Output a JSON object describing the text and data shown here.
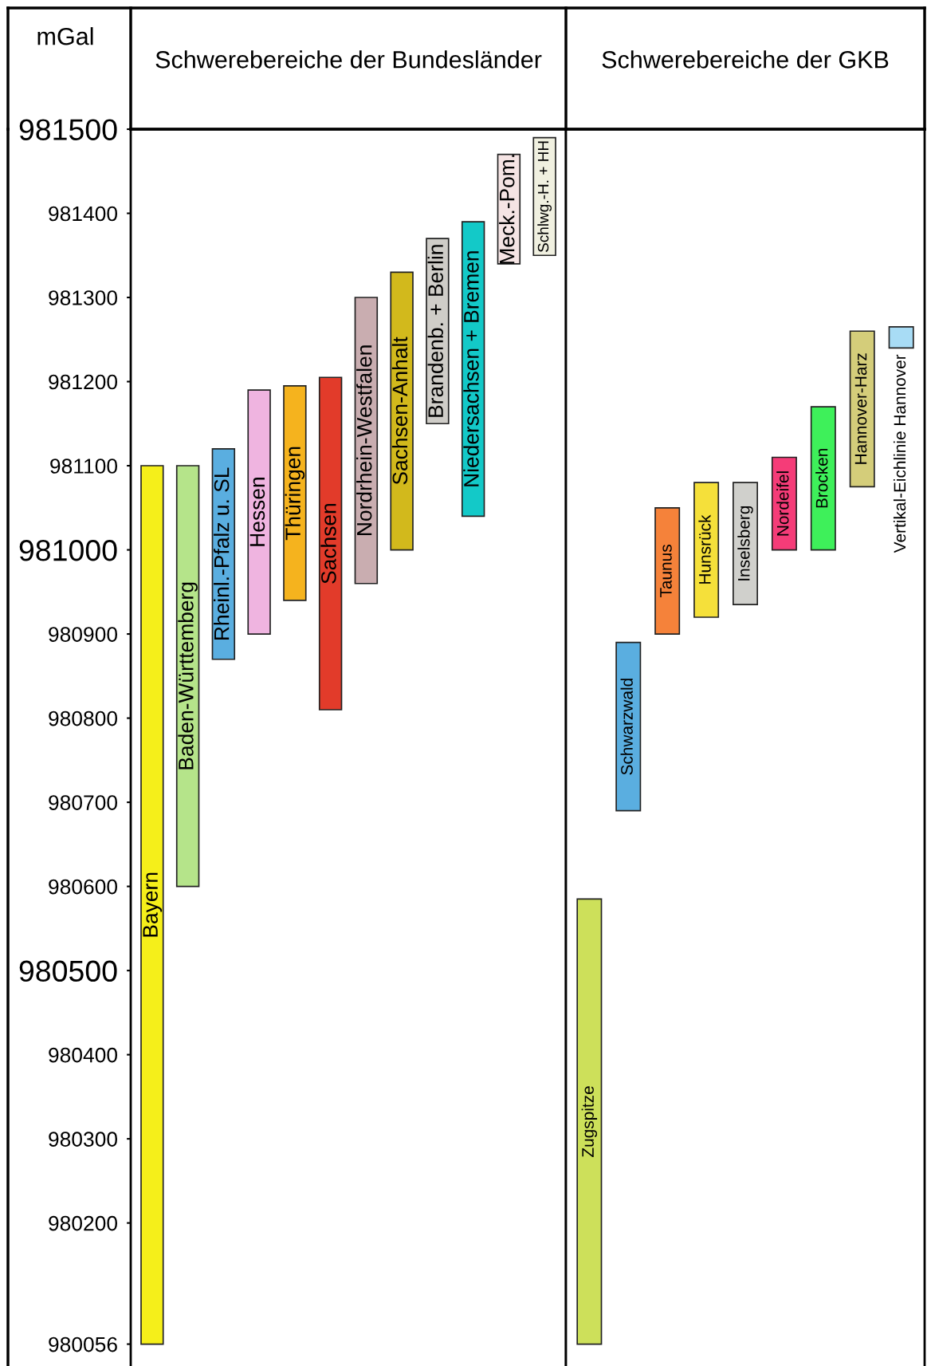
{
  "chart_data": [
    {
      "type": "bar",
      "title": "Schwerebereiche der Bundesländer",
      "ylabel": "mGal",
      "tick_labels": "y",
      "grid": false,
      "categories": [
        "Bayern",
        "Baden-Württemberg",
        "Rheinl.-Pfalz u. SL",
        "Hessen",
        "Thüringen",
        "Sachsen",
        "Nordrhein-Westfalen",
        "Sachsen-Anhalt",
        "Brandenb. + Berlin",
        "Niedersachsen + Bremen",
        "Meck.-Pom.",
        "Schlwg.-H. + HH"
      ],
      "base": [
        980056,
        980600,
        980870,
        980900,
        980940,
        980810,
        980960,
        981000,
        981150,
        981040,
        981340,
        981350
      ],
      "values": [
        1044,
        500,
        250,
        290,
        255,
        395,
        340,
        330,
        220,
        350,
        130,
        140
      ],
      "colors": [
        "#f5ef1a",
        "#b5e48a",
        "#5aaee0",
        "#efb4e0",
        "#f5b31e",
        "#e23b2a",
        "#c9adb0",
        "#d2b91c",
        "#cfcdc8",
        "#13c9c8",
        "#f5e4e4",
        "#f0f0e0"
      ],
      "ylim": [
        980030,
        981500
      ],
      "yticks": [
        980056,
        980200,
        980300,
        980400,
        980500,
        980600,
        980700,
        980800,
        980900,
        981000,
        981100,
        981200,
        981300,
        981400,
        981500
      ]
    },
    {
      "type": "bar",
      "title": "Schwerebereiche der GKB",
      "tick_labels": false,
      "grid": false,
      "categories": [
        "Zugspitze",
        "Schwarzwald",
        "Taunus",
        "Hunsrück",
        "Inselsberg",
        "Nordeifel",
        "Brocken",
        "Hannover-Harz",
        "Vertikal-Eichlinie Hannover"
      ],
      "base": [
        980056,
        980690,
        980900,
        980920,
        980935,
        981000,
        981000,
        981075,
        981240
      ],
      "values": [
        529,
        200,
        150,
        160,
        145,
        110,
        170,
        185,
        25
      ],
      "colors": [
        "#cde05a",
        "#5aaee0",
        "#f5823a",
        "#f5e03a",
        "#d0d0cc",
        "#f53c78",
        "#3ef05a",
        "#d4cd7a",
        "#a8dcf5"
      ],
      "ylim": [
        980030,
        981500
      ]
    }
  ]
}
